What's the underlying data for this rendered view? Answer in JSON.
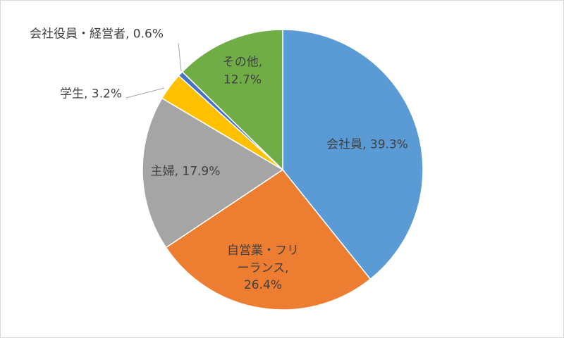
{
  "chart_data": {
    "type": "pie",
    "categories": [
      "会社員",
      "自営業・フリーランス",
      "主婦",
      "学生",
      "会社役員・経営者",
      "その他"
    ],
    "values": [
      39.3,
      26.4,
      17.9,
      3.2,
      0.6,
      12.7
    ],
    "value_labels": [
      "39.3%",
      "26.4%",
      "17.9%",
      "3.2%",
      "0.6%",
      "12.7%"
    ],
    "label_separator": ", ",
    "colors": [
      "#5b9bd5",
      "#ed7d31",
      "#a5a5a5",
      "#ffc000",
      "#4472c4",
      "#70ad47"
    ]
  }
}
